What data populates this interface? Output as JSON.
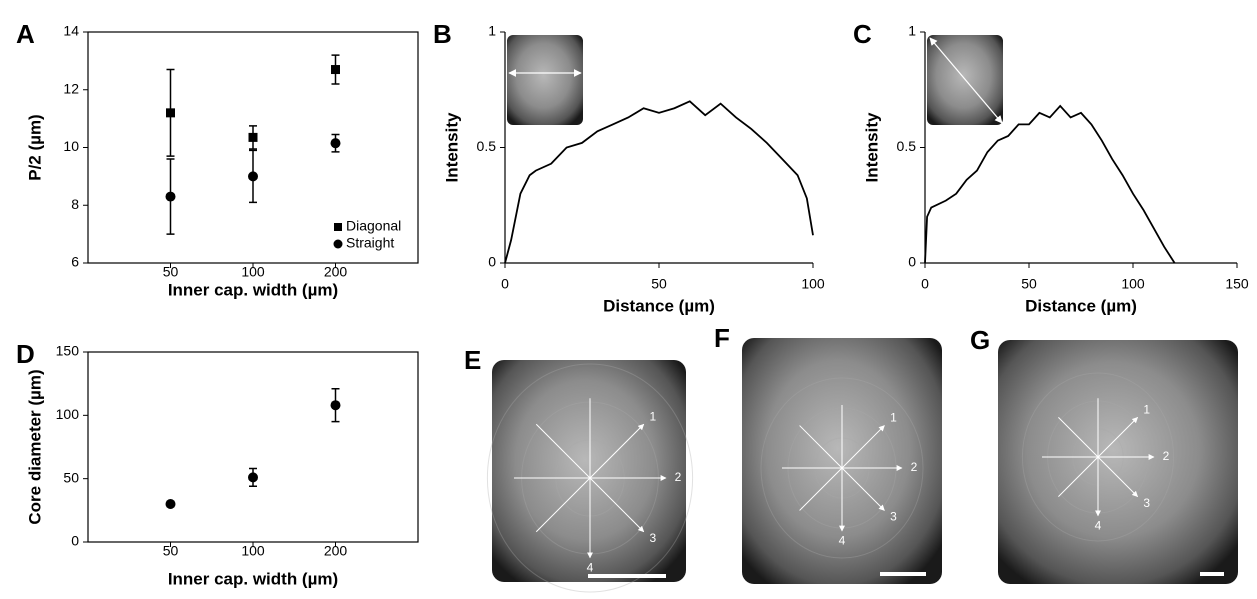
{
  "chart_data": [
    {
      "type": "errorbar-scatter",
      "panel": "A",
      "xlabel": "Inner cap. width (µm)",
      "ylabel": "P/2 (µm)",
      "categories": [
        "50",
        "100",
        "200"
      ],
      "ylim": [
        6,
        14
      ],
      "yticks": [
        6,
        8,
        10,
        12,
        14
      ],
      "frame": true,
      "legend": "lower right",
      "series": [
        {
          "name": "Diagonal",
          "marker": "square",
          "color": "#000000",
          "values": [
            11.2,
            10.35,
            12.7
          ],
          "errors": [
            1.5,
            0.4,
            0.5
          ]
        },
        {
          "name": "Straight",
          "marker": "circle",
          "color": "#000000",
          "values": [
            8.3,
            9.0,
            10.15
          ],
          "errors": [
            1.3,
            0.9,
            0.3
          ]
        }
      ]
    },
    {
      "type": "line",
      "panel": "B",
      "xlabel": "Distance (µm)",
      "ylabel": "Intensity",
      "xlim": [
        0,
        100
      ],
      "xticks": [
        0,
        50,
        100
      ],
      "ylim": [
        0,
        1
      ],
      "yticks": [
        0,
        0.5,
        1
      ],
      "color": "#000000",
      "x": [
        0,
        2,
        5,
        8,
        10,
        15,
        20,
        25,
        30,
        35,
        40,
        45,
        50,
        55,
        60,
        65,
        70,
        75,
        80,
        85,
        90,
        95,
        98,
        100
      ],
      "values": [
        0,
        0.1,
        0.3,
        0.38,
        0.4,
        0.43,
        0.5,
        0.52,
        0.57,
        0.6,
        0.63,
        0.67,
        0.65,
        0.67,
        0.7,
        0.64,
        0.69,
        0.63,
        0.58,
        0.52,
        0.45,
        0.38,
        0.28,
        0.12
      ]
    },
    {
      "type": "line",
      "panel": "C",
      "xlabel": "Distance (µm)",
      "ylabel": "Intensity",
      "xlim": [
        0,
        150
      ],
      "xticks": [
        0,
        50,
        100,
        150
      ],
      "ylim": [
        0,
        1
      ],
      "yticks": [
        0,
        0.5,
        1
      ],
      "color": "#000000",
      "x": [
        0,
        1,
        3,
        10,
        15,
        20,
        25,
        30,
        35,
        40,
        45,
        50,
        55,
        60,
        65,
        70,
        75,
        80,
        85,
        90,
        95,
        100,
        105,
        110,
        115,
        120
      ],
      "values": [
        0,
        0.2,
        0.24,
        0.27,
        0.3,
        0.36,
        0.4,
        0.48,
        0.53,
        0.55,
        0.6,
        0.6,
        0.65,
        0.63,
        0.68,
        0.63,
        0.65,
        0.6,
        0.53,
        0.45,
        0.38,
        0.3,
        0.23,
        0.15,
        0.07,
        0
      ]
    },
    {
      "type": "errorbar-scatter",
      "panel": "D",
      "xlabel": "Inner cap. width (µm)",
      "ylabel": "Core diameter (µm)",
      "categories": [
        "50",
        "100",
        "200"
      ],
      "ylim": [
        0,
        150
      ],
      "yticks": [
        0,
        50,
        100,
        150
      ],
      "frame": true,
      "series": [
        {
          "marker": "circle",
          "color": "#000000",
          "values": [
            30,
            51,
            108
          ],
          "errors": [
            2,
            7,
            13
          ]
        }
      ]
    }
  ],
  "images": [
    {
      "panel": "E",
      "arrow_labels": [
        "1",
        "2",
        "3",
        "4"
      ]
    },
    {
      "panel": "F",
      "arrow_labels": [
        "1",
        "2",
        "3",
        "4"
      ]
    },
    {
      "panel": "G",
      "arrow_labels": [
        "1",
        "2",
        "3",
        "4"
      ]
    }
  ]
}
